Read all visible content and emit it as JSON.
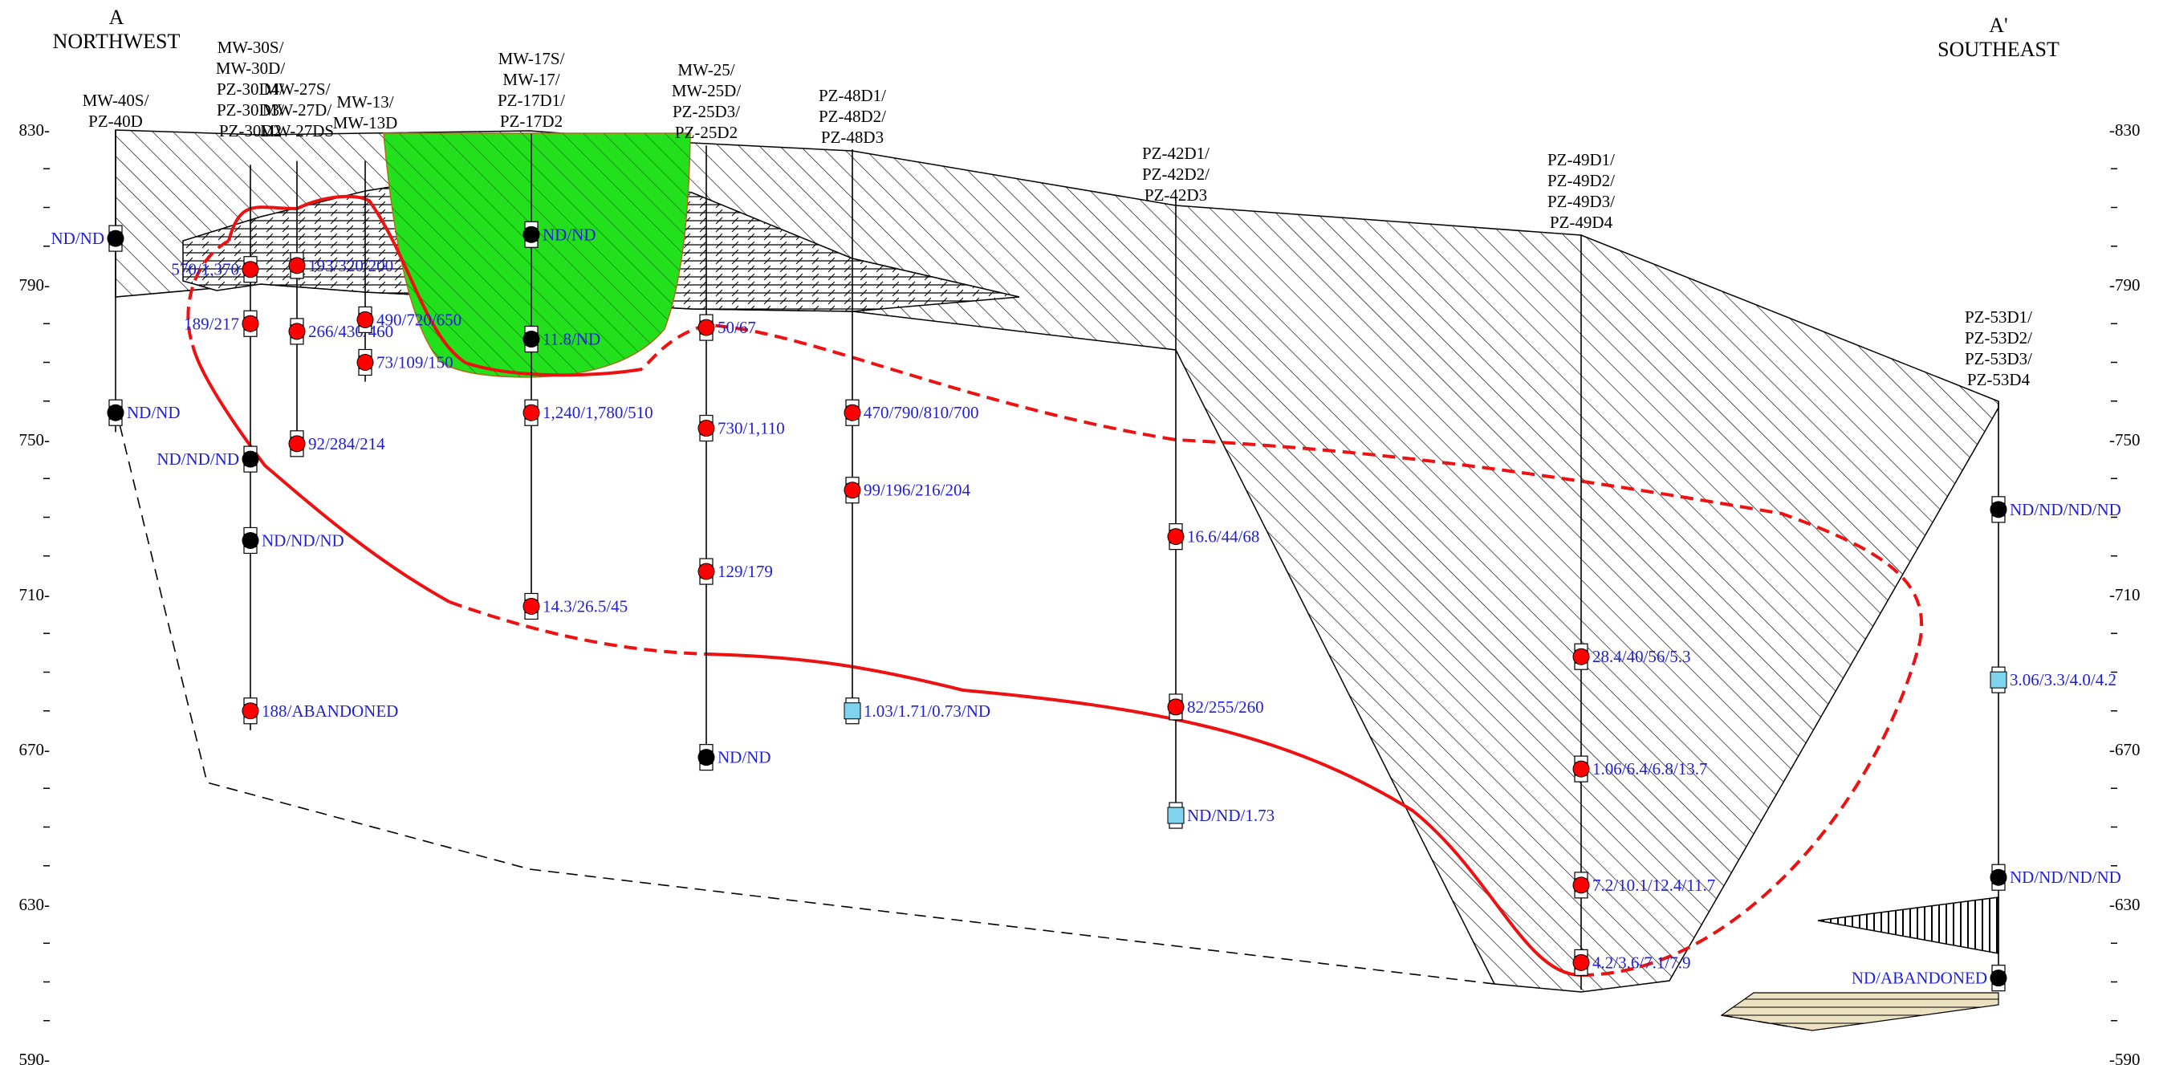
{
  "title_left": {
    "letter": "A",
    "direction": "NORTHWEST"
  },
  "title_right": {
    "letter": "A'",
    "direction": "SOUTHEAST"
  },
  "elevation_axis": {
    "min": 590,
    "max": 830,
    "labels": [
      {
        "value": 830,
        "left": "830-",
        "right": "-830"
      },
      {
        "value": 790,
        "left": "790-",
        "right": "-790"
      },
      {
        "value": 750,
        "left": "750-",
        "right": "-750"
      },
      {
        "value": 710,
        "left": "710-",
        "right": "-710"
      },
      {
        "value": 670,
        "left": "670-",
        "right": "-670"
      },
      {
        "value": 630,
        "left": "630-",
        "right": "-630"
      },
      {
        "value": 590,
        "left": "590-",
        "right": "-590"
      }
    ],
    "minor_ticks": [
      820,
      810,
      800,
      780,
      770,
      760,
      740,
      730,
      720,
      700,
      690,
      680,
      660,
      650,
      640,
      620,
      610,
      600
    ]
  },
  "wells": [
    {
      "id": "mw40",
      "label_lines": [
        "MW-40S/",
        "PZ-40D"
      ],
      "top_elev": 830,
      "bottom_elev": 752,
      "samples": [
        {
          "elev": 802,
          "type": "nd",
          "label": "ND/ND"
        },
        {
          "elev": 757,
          "type": "nd",
          "label": "ND/ND"
        }
      ]
    },
    {
      "id": "mw30",
      "label_lines": [
        "MW-30S/",
        "MW-30D/",
        "PZ-30D4/",
        "PZ-30D3/",
        "PZ-30D2"
      ],
      "top_elev": 821,
      "bottom_elev": 675,
      "samples": [
        {
          "elev": 794,
          "type": "exceed",
          "label": "570/1,370"
        },
        {
          "elev": 780,
          "type": "exceed",
          "label": "189/217"
        },
        {
          "elev": 745,
          "type": "nd",
          "label": "ND/ND/ND"
        },
        {
          "elev": 724,
          "type": "nd",
          "label": "ND/ND/ND"
        },
        {
          "elev": 680,
          "type": "exceed",
          "label": "188/ABANDONED"
        }
      ]
    },
    {
      "id": "mw27",
      "label_lines": [
        "MW-27S/",
        "MW-27D/",
        "MW-27DS"
      ],
      "top_elev": 822,
      "bottom_elev": 748,
      "samples": [
        {
          "elev": 795,
          "type": "exceed",
          "label": "193/320/200"
        },
        {
          "elev": 778,
          "type": "exceed",
          "label": "266/430/460"
        },
        {
          "elev": 749,
          "type": "exceed",
          "label": "92/284/214"
        }
      ]
    },
    {
      "id": "mw13",
      "label_lines": [
        "MW-13/",
        "MW-13D"
      ],
      "top_elev": 822,
      "bottom_elev": 765,
      "samples": [
        {
          "elev": 781,
          "type": "exceed",
          "label": "490/720/650"
        },
        {
          "elev": 770,
          "type": "exceed",
          "label": "73/109/150"
        }
      ]
    },
    {
      "id": "mw17",
      "label_lines": [
        "MW-17S/",
        "MW-17/",
        "PZ-17D1/",
        "PZ-17D2"
      ],
      "top_elev": 829,
      "bottom_elev": 706,
      "samples": [
        {
          "elev": 803,
          "type": "nd",
          "label": "ND/ND"
        },
        {
          "elev": 776,
          "type": "nd",
          "label": "11.8/ND"
        },
        {
          "elev": 757,
          "type": "exceed",
          "label": "1,240/1,780/510"
        },
        {
          "elev": 707,
          "type": "exceed",
          "label": "14.3/26.5/45"
        }
      ]
    },
    {
      "id": "mw25",
      "label_lines": [
        "MW-25/",
        "MW-25D/",
        "PZ-25D3/",
        "PZ-25D2"
      ],
      "top_elev": 826,
      "bottom_elev": 667,
      "samples": [
        {
          "elev": 779,
          "type": "exceed",
          "label": "50/67"
        },
        {
          "elev": 753,
          "type": "exceed",
          "label": "730/1,110"
        },
        {
          "elev": 716,
          "type": "exceed",
          "label": "129/179"
        },
        {
          "elev": 668,
          "type": "nd",
          "label": "ND/ND"
        }
      ]
    },
    {
      "id": "pz48",
      "label_lines": [
        "PZ-48D1/",
        "PZ-48D2/",
        "PZ-48D3"
      ],
      "top_elev": 825,
      "bottom_elev": 679,
      "samples": [
        {
          "elev": 757,
          "type": "exceed",
          "label": "470/790/810/700"
        },
        {
          "elev": 737,
          "type": "exceed",
          "label": "99/196/216/204"
        },
        {
          "elev": 680,
          "type": "below",
          "label": "1.03/1.71/0.73/ND"
        }
      ]
    },
    {
      "id": "pz42",
      "label_lines": [
        "PZ-42D1/",
        "PZ-42D2/",
        "PZ-42D3"
      ],
      "top_elev": 812,
      "bottom_elev": 652,
      "samples": [
        {
          "elev": 725,
          "type": "exceed",
          "label": "16.6/44/68"
        },
        {
          "elev": 681,
          "type": "exceed",
          "label": "82/255/260"
        },
        {
          "elev": 653,
          "type": "below",
          "label": "ND/ND/1.73"
        }
      ]
    },
    {
      "id": "pz49",
      "label_lines": [
        "PZ-49D1/",
        "PZ-49D2/",
        "PZ-49D3/",
        "PZ-49D4"
      ],
      "top_elev": 803,
      "bottom_elev": 608,
      "samples": [
        {
          "elev": 694,
          "type": "exceed",
          "label": "28.4/40/56/5.3"
        },
        {
          "elev": 665,
          "type": "exceed",
          "label": "1.06/6.4/6.8/13.7"
        },
        {
          "elev": 635,
          "type": "exceed",
          "label": "7.2/10.1/12.4/11.7"
        },
        {
          "elev": 615,
          "type": "exceed",
          "label": "4.2/3.6/7.1/7.9"
        }
      ]
    },
    {
      "id": "pz53",
      "label_lines": [
        "PZ-53D1/",
        "PZ-53D2/",
        "PZ-53D3/",
        "PZ-53D4"
      ],
      "top_elev": 760,
      "bottom_elev": 610,
      "samples": [
        {
          "elev": 732,
          "type": "nd",
          "label": "ND/ND/ND/ND"
        },
        {
          "elev": 688,
          "type": "below",
          "label": "3.06/3.3/4.0/4.2"
        },
        {
          "elev": 637,
          "type": "nd",
          "label": "ND/ND/ND/ND"
        },
        {
          "elev": 611,
          "type": "nd",
          "label": "ND/ABANDONED"
        }
      ]
    }
  ],
  "colors": {
    "exceed": "#ff0000",
    "nd": "#000000",
    "below": "#7fd3ec",
    "excavation": "#22e01c",
    "plume": "#ee1111",
    "label": "#1f1fd6",
    "sand": "#ece2c2"
  }
}
